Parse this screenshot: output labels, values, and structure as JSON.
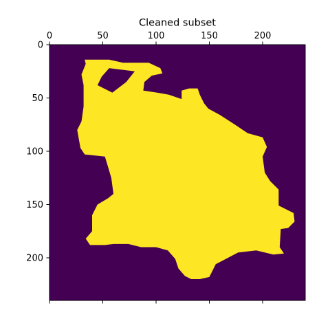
{
  "chart_data": {
    "type": "heatmap",
    "title": "Cleaned subset",
    "xlabel": "",
    "ylabel": "",
    "x_ticks": [
      0,
      50,
      100,
      150,
      200
    ],
    "y_ticks": [
      0,
      50,
      100,
      150,
      200
    ],
    "xlim": [
      0,
      240
    ],
    "ylim": [
      0,
      240
    ],
    "x_axis_position": "top",
    "y_axis_inverted": true,
    "grid": false,
    "colormap": "viridis",
    "colors": {
      "background": "#440154",
      "foreground": "#fde725"
    },
    "values": [
      0,
      1
    ],
    "mask_region": [
      [
        33,
        14
      ],
      [
        56,
        14
      ],
      [
        69,
        17
      ],
      [
        93,
        17
      ],
      [
        104,
        22
      ],
      [
        106,
        27
      ],
      [
        96,
        29
      ],
      [
        89,
        35
      ],
      [
        88,
        43
      ],
      [
        101,
        45
      ],
      [
        112,
        47
      ],
      [
        124,
        51
      ],
      [
        124,
        43
      ],
      [
        131,
        41
      ],
      [
        139,
        41
      ],
      [
        141,
        47
      ],
      [
        145,
        55
      ],
      [
        149,
        60
      ],
      [
        160,
        66
      ],
      [
        174,
        75
      ],
      [
        186,
        83
      ],
      [
        200,
        87
      ],
      [
        204,
        96
      ],
      [
        200,
        105
      ],
      [
        202,
        120
      ],
      [
        207,
        128
      ],
      [
        215,
        136
      ],
      [
        215,
        151
      ],
      [
        229,
        158
      ],
      [
        230,
        166
      ],
      [
        224,
        172
      ],
      [
        217,
        173
      ],
      [
        216,
        190
      ],
      [
        220,
        196
      ],
      [
        210,
        197
      ],
      [
        194,
        193
      ],
      [
        177,
        195
      ],
      [
        156,
        206
      ],
      [
        150,
        218
      ],
      [
        141,
        220
      ],
      [
        133,
        220
      ],
      [
        127,
        217
      ],
      [
        121,
        210
      ],
      [
        118,
        201
      ],
      [
        111,
        193
      ],
      [
        100,
        190
      ],
      [
        86,
        190
      ],
      [
        74,
        187
      ],
      [
        60,
        187
      ],
      [
        52,
        188
      ],
      [
        38,
        188
      ],
      [
        34,
        182
      ],
      [
        40,
        175
      ],
      [
        40,
        160
      ],
      [
        45,
        150
      ],
      [
        55,
        144
      ],
      [
        60,
        140
      ],
      [
        58,
        125
      ],
      [
        55,
        115
      ],
      [
        52,
        105
      ],
      [
        33,
        103
      ],
      [
        29,
        97
      ],
      [
        26,
        80
      ],
      [
        30,
        72
      ],
      [
        32,
        58
      ],
      [
        32,
        38
      ],
      [
        30,
        28
      ],
      [
        34,
        18
      ]
    ],
    "hole_region": [
      [
        56,
        22
      ],
      [
        80,
        25
      ],
      [
        72,
        35
      ],
      [
        59,
        45
      ],
      [
        45,
        38
      ],
      [
        49,
        30
      ]
    ]
  }
}
